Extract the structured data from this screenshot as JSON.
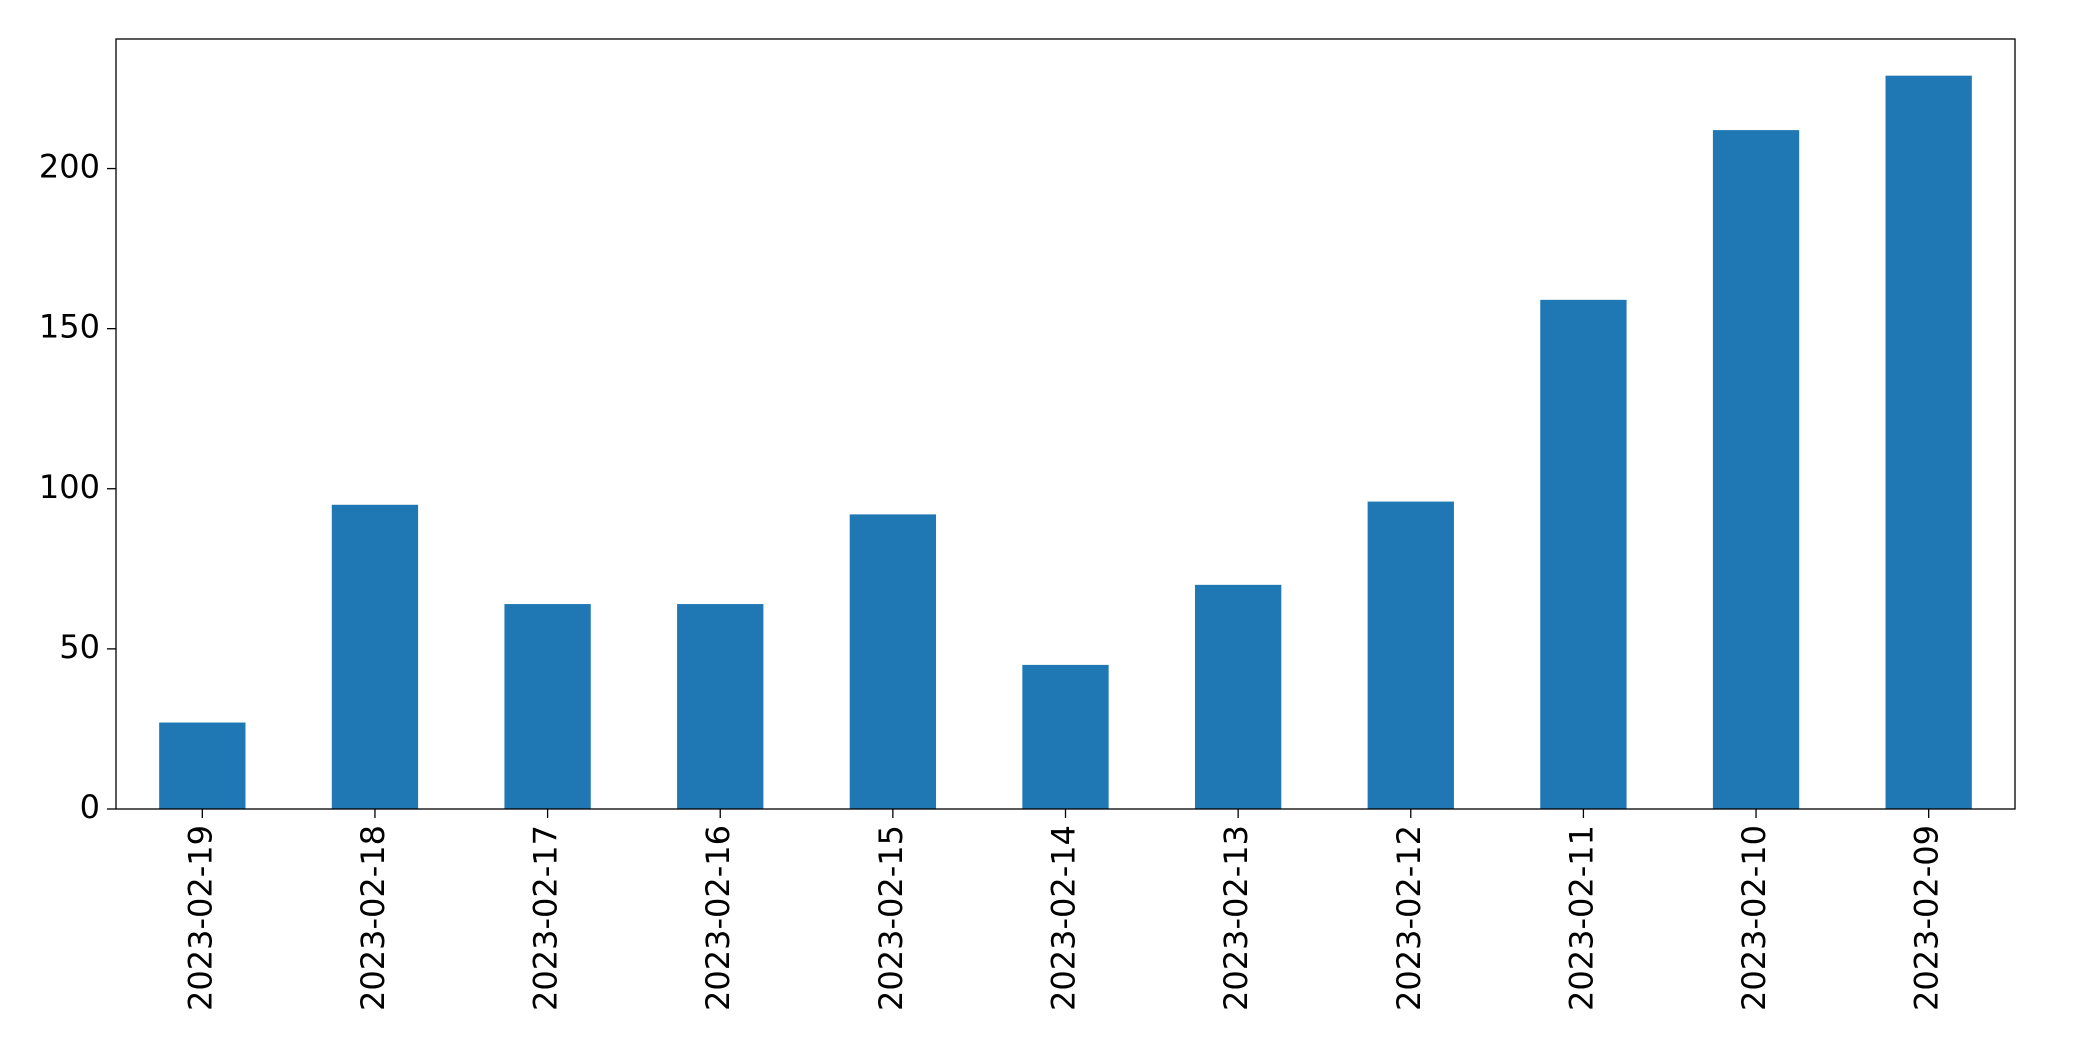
{
  "chart_data": {
    "type": "bar",
    "categories": [
      "2023-02-19",
      "2023-02-18",
      "2023-02-17",
      "2023-02-16",
      "2023-02-15",
      "2023-02-14",
      "2023-02-13",
      "2023-02-12",
      "2023-02-11",
      "2023-02-10",
      "2023-02-09"
    ],
    "values": [
      27,
      95,
      64,
      64,
      92,
      45,
      70,
      96,
      159,
      212,
      229
    ],
    "color": "#1f77b4",
    "ylim": [
      0,
      240.45
    ],
    "yticks": [
      0,
      50,
      100,
      150,
      200
    ],
    "grid": false
  }
}
